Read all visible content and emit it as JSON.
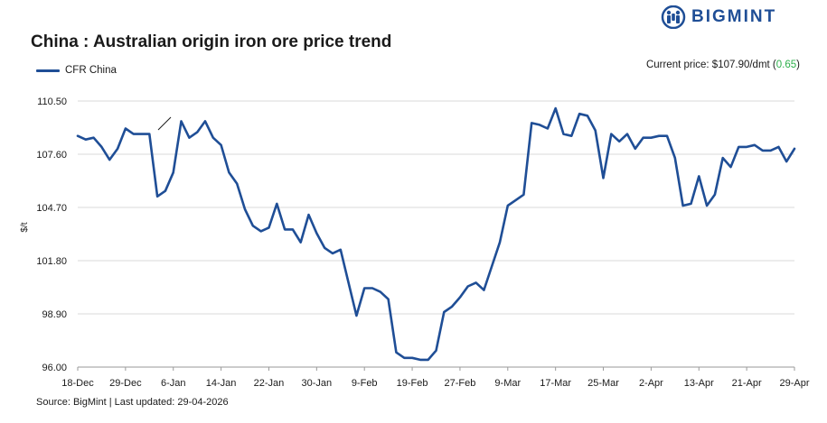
{
  "header": {
    "title": "China : Australian origin iron ore price trend",
    "brand": "BIGMINT",
    "logo_icon": "bigmint-logo-icon"
  },
  "legend": {
    "series_name": "CFR China",
    "color": "#1f4e96"
  },
  "current_price": {
    "label": "Current price: $107.90/dmt (",
    "change": "0.65",
    "suffix": ")",
    "change_color": "#2db04b"
  },
  "footer": {
    "source": "Source: BigMint | Last updated: 29-04-2026"
  },
  "chart_data": {
    "type": "line",
    "title": "China : Australian origin iron ore price trend",
    "ylabel": "$/t",
    "xlabel": "",
    "ylim": [
      96.0,
      110.5
    ],
    "yticks": [
      "96.00",
      "98.90",
      "101.80",
      "104.70",
      "107.60",
      "110.50"
    ],
    "xticks": [
      "18-Dec",
      "29-Dec",
      "6-Jan",
      "14-Jan",
      "22-Jan",
      "30-Jan",
      "9-Feb",
      "19-Feb",
      "27-Feb",
      "9-Mar",
      "17-Mar",
      "25-Mar",
      "2-Apr",
      "13-Apr",
      "21-Apr",
      "29-Apr"
    ],
    "grid": true,
    "legend_position": "top-left",
    "series": [
      {
        "name": "CFR China",
        "color": "#1f4e96",
        "values": [
          108.6,
          108.4,
          108.5,
          108.0,
          107.3,
          107.9,
          109.0,
          108.7,
          108.7,
          108.7,
          105.3,
          105.6,
          106.6,
          109.4,
          108.5,
          108.8,
          109.4,
          108.5,
          108.1,
          106.6,
          106.0,
          104.6,
          103.7,
          103.4,
          103.6,
          104.9,
          103.5,
          103.5,
          102.8,
          104.3,
          103.3,
          102.5,
          102.2,
          102.4,
          100.6,
          98.8,
          100.3,
          100.3,
          100.1,
          99.7,
          96.8,
          96.5,
          96.5,
          96.4,
          96.4,
          96.9,
          99.0,
          99.3,
          99.8,
          100.4,
          100.6,
          100.2,
          101.5,
          102.8,
          104.8,
          105.1,
          105.4,
          109.3,
          109.2,
          109.0,
          110.1,
          108.7,
          108.6,
          109.8,
          109.7,
          108.9,
          106.3,
          108.7,
          108.3,
          108.7,
          107.9,
          108.5,
          108.5,
          108.6,
          108.6,
          107.4,
          104.8,
          104.9,
          106.4,
          104.8,
          105.4,
          107.4,
          106.9,
          108.0,
          108.0,
          108.1,
          107.8,
          107.8,
          108.0,
          107.2,
          107.9
        ]
      }
    ]
  }
}
